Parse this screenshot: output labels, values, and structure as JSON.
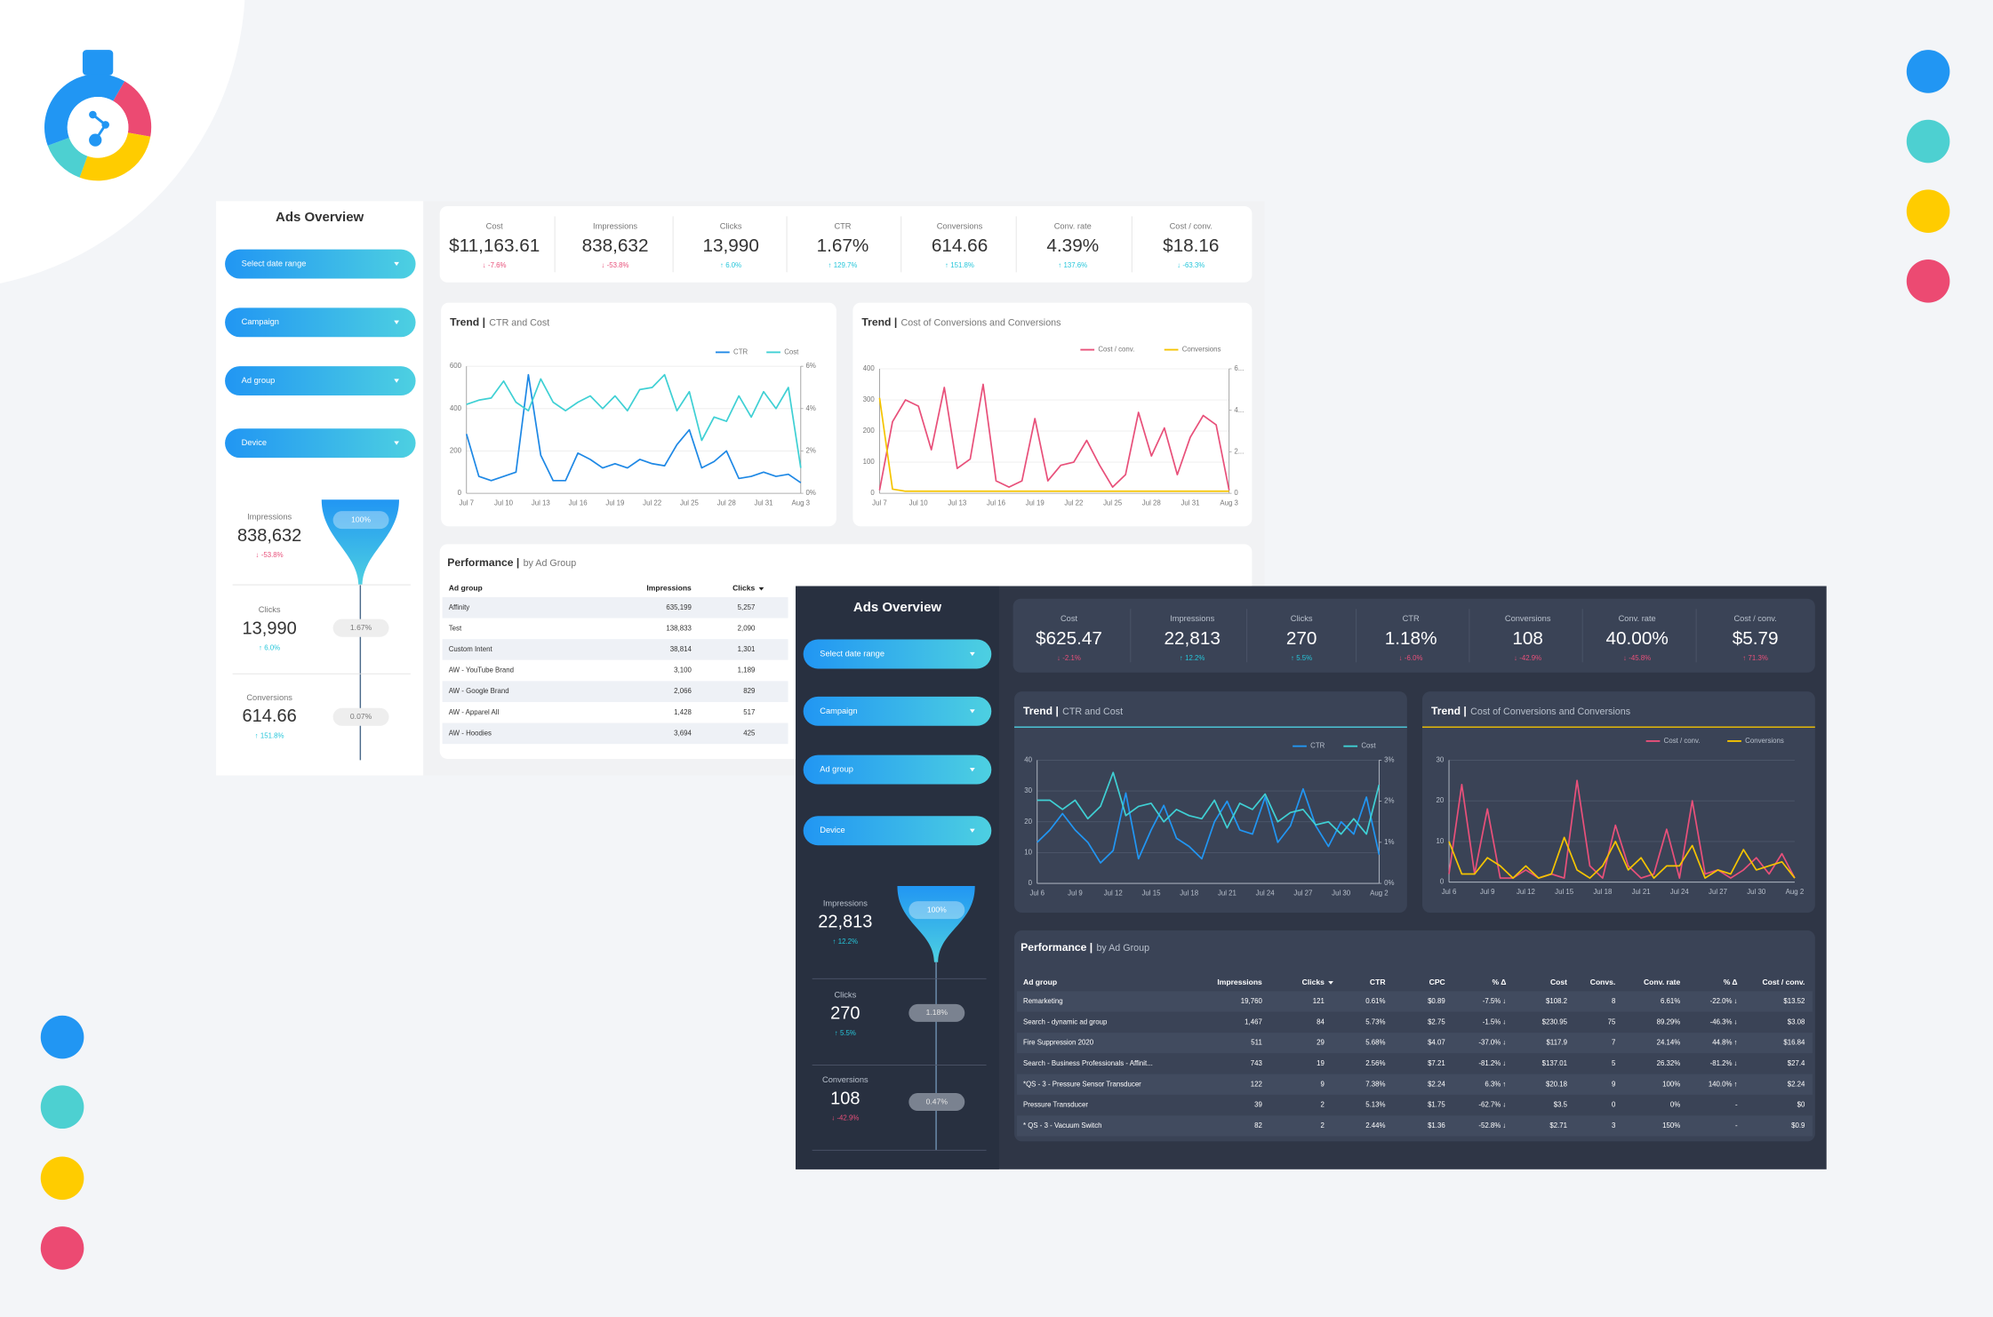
{
  "light": {
    "title": "Ads Overview",
    "filters": [
      "Select date range",
      "Campaign",
      "Ad group",
      "Device"
    ],
    "funnel": [
      {
        "label": "Impressions",
        "value": "838,632",
        "delta": "↓ -53.8%",
        "color": "#e8507a",
        "rate": "100%"
      },
      {
        "label": "Clicks",
        "value": "13,990",
        "delta": "↑ 6.0%",
        "color": "#26c6da",
        "rate": "1.67%"
      },
      {
        "label": "Conversions",
        "value": "614.66",
        "delta": "↑ 151.8%",
        "color": "#26c6da",
        "rate": "0.07%"
      }
    ],
    "kpis": [
      {
        "label": "Cost",
        "value": "$11,163.61",
        "delta": "↓ -7.6%",
        "color": "#e8507a"
      },
      {
        "label": "Impressions",
        "value": "838,632",
        "delta": "↓ -53.8%",
        "color": "#e8507a"
      },
      {
        "label": "Clicks",
        "value": "13,990",
        "delta": "↑ 6.0%",
        "color": "#26c6da"
      },
      {
        "label": "CTR",
        "value": "1.67%",
        "delta": "↑ 129.7%",
        "color": "#26c6da"
      },
      {
        "label": "Conversions",
        "value": "614.66",
        "delta": "↑ 151.8%",
        "color": "#26c6da"
      },
      {
        "label": "Conv. rate",
        "value": "4.39%",
        "delta": "↑ 137.6%",
        "color": "#26c6da"
      },
      {
        "label": "Cost / conv.",
        "value": "$18.16",
        "delta": "↓ -63.3%",
        "color": "#26c6da"
      }
    ],
    "charts": [
      {
        "type": "line",
        "title": "Trend |",
        "subtitle": "CTR and Cost",
        "grid": true,
        "x": [
          "Jul 7",
          null,
          null,
          "Jul 10",
          null,
          null,
          "Jul 13",
          null,
          null,
          "Jul 16",
          null,
          null,
          "Jul 19",
          null,
          null,
          "Jul 22",
          null,
          null,
          "Jul 25",
          null,
          null,
          "Jul 28",
          null,
          null,
          "Jul 31",
          null,
          null,
          "Aug 3"
        ],
        "ylim": [
          0,
          600
        ],
        "yticks": [
          0,
          200,
          400,
          600
        ],
        "y2lim": [
          0,
          6
        ],
        "y2ticks": [
          {
            "value": 0,
            "label": "0%"
          },
          {
            "value": 2,
            "label": "2%"
          },
          {
            "value": 4,
            "label": "4%"
          },
          {
            "value": 6,
            "label": "6%"
          }
        ],
        "series": [
          {
            "name": "CTR",
            "color": "#1e88e5",
            "axis": "y2",
            "values": [
              2.8,
              0.8,
              0.6,
              0.8,
              1.0,
              5.6,
              1.8,
              0.6,
              0.6,
              1.9,
              1.6,
              1.2,
              1.4,
              1.2,
              1.6,
              1.4,
              1.3,
              2.3,
              3.0,
              1.2,
              1.5,
              2.0,
              0.7,
              0.8,
              1.0,
              0.8,
              0.9,
              0.5
            ]
          },
          {
            "name": "Cost",
            "color": "#3fd0d4",
            "values": [
              420,
              440,
              450,
              530,
              430,
              390,
              540,
              430,
              390,
              430,
              460,
              400,
              460,
              390,
              490,
              500,
              560,
              390,
              480,
              250,
              360,
              340,
              460,
              360,
              480,
              400,
              500,
              120
            ]
          }
        ]
      },
      {
        "type": "line",
        "title": "Trend |",
        "subtitle": "Cost of Conversions and Conversions",
        "grid": true,
        "x": [
          "Jul 7",
          null,
          null,
          "Jul 10",
          null,
          null,
          "Jul 13",
          null,
          null,
          "Jul 16",
          null,
          null,
          "Jul 19",
          null,
          null,
          "Jul 22",
          null,
          null,
          "Jul 25",
          null,
          null,
          "Jul 28",
          null,
          null,
          "Jul 31",
          null,
          null,
          "Aug 3"
        ],
        "ylim": [
          0,
          400
        ],
        "yticks": [
          0,
          100,
          200,
          300,
          400
        ],
        "y2lim": [
          0,
          60
        ],
        "y2ticks": [
          0,
          {
            "value": 20,
            "label": "2..."
          },
          {
            "value": 40,
            "label": "4..."
          },
          {
            "value": 60,
            "label": "6..."
          }
        ],
        "series": [
          {
            "name": "Cost / conv.",
            "color": "#e8507a",
            "values": [
              10,
              230,
              300,
              280,
              140,
              340,
              80,
              110,
              350,
              40,
              20,
              40,
              240,
              40,
              90,
              100,
              170,
              90,
              20,
              60,
              260,
              120,
              210,
              60,
              180,
              250,
              220,
              10
            ]
          },
          {
            "name": "Conversions",
            "color": "#f5c400",
            "axis": "y2",
            "values": [
              46,
              2,
              1,
              1,
              1,
              1,
              1,
              1,
              1,
              1,
              1,
              1,
              1,
              1,
              1,
              1,
              1,
              1,
              1,
              1,
              1,
              1,
              1,
              1,
              1,
              1,
              1,
              1
            ]
          }
        ]
      }
    ],
    "performance": {
      "title": "Performance |",
      "subtitle": "by Ad Group",
      "columns": [
        "Ad group",
        "Impressions",
        "Clicks"
      ],
      "rows": [
        [
          "Affinity",
          "635,199",
          "5,257"
        ],
        [
          "Test",
          "138,833",
          "2,090"
        ],
        [
          "Custom Intent",
          "38,814",
          "1,301"
        ],
        [
          "AW - YouTube Brand",
          "3,100",
          "1,189"
        ],
        [
          "AW - Google Brand",
          "2,066",
          "829"
        ],
        [
          "AW - Apparel All",
          "1,428",
          "517"
        ],
        [
          "AW - Hoodies",
          "3,694",
          "425"
        ]
      ]
    }
  },
  "dark": {
    "title": "Ads Overview",
    "filters": [
      "Select date range",
      "Campaign",
      "Ad group",
      "Device"
    ],
    "funnel": [
      {
        "label": "Impressions",
        "value": "22,813",
        "delta": "↑ 12.2%",
        "color": "#26c6da",
        "rate": "100%"
      },
      {
        "label": "Clicks",
        "value": "270",
        "delta": "↑ 5.5%",
        "color": "#26c6da",
        "rate": "1.18%"
      },
      {
        "label": "Conversions",
        "value": "108",
        "delta": "↓ -42.9%",
        "color": "#e8507a",
        "rate": "0.47%"
      }
    ],
    "kpis": [
      {
        "label": "Cost",
        "value": "$625.47",
        "delta": "↓ -2.1%",
        "color": "#e8507a"
      },
      {
        "label": "Impressions",
        "value": "22,813",
        "delta": "↑ 12.2%",
        "color": "#26c6da"
      },
      {
        "label": "Clicks",
        "value": "270",
        "delta": "↑ 5.5%",
        "color": "#26c6da"
      },
      {
        "label": "CTR",
        "value": "1.18%",
        "delta": "↓ -6.0%",
        "color": "#e8507a"
      },
      {
        "label": "Conversions",
        "value": "108",
        "delta": "↓ -42.9%",
        "color": "#e8507a"
      },
      {
        "label": "Conv. rate",
        "value": "40.00%",
        "delta": "↓ -45.8%",
        "color": "#e8507a"
      },
      {
        "label": "Cost / conv.",
        "value": "$5.79",
        "delta": "↑ 71.3%",
        "color": "#e8507a"
      }
    ],
    "charts": [
      {
        "type": "line",
        "title": "Trend |",
        "subtitle": "CTR and Cost",
        "grid": true,
        "x": [
          "Jul 6",
          null,
          null,
          "Jul 9",
          null,
          null,
          "Jul 12",
          null,
          null,
          "Jul 15",
          null,
          null,
          "Jul 18",
          null,
          null,
          "Jul 21",
          null,
          null,
          "Jul 24",
          null,
          null,
          "Jul 27",
          null,
          null,
          "Jul 30",
          null,
          null,
          "Aug 2"
        ],
        "ylim": [
          0,
          40
        ],
        "yticks": [
          0,
          10,
          20,
          30,
          40
        ],
        "y2lim": [
          0,
          3
        ],
        "y2ticks": [
          {
            "value": 0,
            "label": "0%"
          },
          {
            "value": 1,
            "label": "1%"
          },
          {
            "value": 2,
            "label": "2%"
          },
          {
            "value": 3,
            "label": "3%"
          }
        ],
        "series": [
          {
            "name": "CTR",
            "color": "#2196f3",
            "axis": "y2",
            "values": [
              1.0,
              1.3,
              1.7,
              1.3,
              1.0,
              0.5,
              0.8,
              2.2,
              0.6,
              1.3,
              1.9,
              1.1,
              0.9,
              0.6,
              1.5,
              2.0,
              1.3,
              1.2,
              2.1,
              1.0,
              1.4,
              2.3,
              1.4,
              0.9,
              1.5,
              1.2,
              2.1,
              0.7
            ]
          },
          {
            "name": "Cost",
            "color": "#3fd0d4",
            "values": [
              27,
              27,
              24,
              27,
              21,
              25,
              36,
              22,
              25,
              26,
              20,
              24,
              22,
              21,
              27,
              18,
              26,
              24,
              29,
              20,
              23,
              24,
              19,
              20,
              16,
              21,
              16,
              32
            ]
          }
        ]
      },
      {
        "type": "line",
        "title": "Trend |",
        "subtitle": "Cost of Conversions and Conversions",
        "grid": true,
        "x": [
          "Jul 6",
          null,
          null,
          "Jul 9",
          null,
          null,
          "Jul 12",
          null,
          null,
          "Jul 15",
          null,
          null,
          "Jul 18",
          null,
          null,
          "Jul 21",
          null,
          null,
          "Jul 24",
          null,
          null,
          "Jul 27",
          null,
          null,
          "Jul 30",
          null,
          null,
          "Aug 2"
        ],
        "ylim": [
          0,
          30
        ],
        "yticks": [
          0,
          10,
          20,
          30
        ],
        "series": [
          {
            "name": "Cost / conv.",
            "color": "#e8507a",
            "values": [
              2,
              24,
              2,
              18,
              1,
              1,
              3,
              1,
              2,
              1,
              25,
              4,
              1,
              14,
              4,
              1,
              2,
              13,
              1,
              20,
              2,
              3,
              1,
              3,
              6,
              2,
              7,
              1
            ]
          },
          {
            "name": "Conversions",
            "color": "#f5c400",
            "values": [
              10,
              2,
              2,
              6,
              4,
              1,
              4,
              1,
              2,
              11,
              3,
              1,
              4,
              10,
              3,
              6,
              1,
              4,
              4,
              9,
              1,
              3,
              2,
              8,
              3,
              4,
              5,
              1
            ]
          }
        ]
      }
    ],
    "performance": {
      "title": "Performance |",
      "subtitle": "by Ad Group",
      "columns": [
        "Ad group",
        "Impressions",
        "Clicks",
        "CTR",
        "CPC",
        "% Δ",
        "Cost",
        "Convs.",
        "Conv. rate",
        "% Δ",
        "Cost / conv."
      ],
      "rows": [
        [
          "Remarketing",
          "19,760",
          "121",
          "0.61%",
          "$0.89",
          "-7.5% ↓",
          "$108.2",
          "8",
          "6.61%",
          "-22.0% ↓",
          "$13.52"
        ],
        [
          "Search - dynamic ad group",
          "1,467",
          "84",
          "5.73%",
          "$2.75",
          "-1.5% ↓",
          "$230.95",
          "75",
          "89.29%",
          "-46.3% ↓",
          "$3.08"
        ],
        [
          "Fire Suppression 2020",
          "511",
          "29",
          "5.68%",
          "$4.07",
          "-37.0% ↓",
          "$117.9",
          "7",
          "24.14%",
          "44.8% ↑",
          "$16.84"
        ],
        [
          "Search - Business Professionals - Affinit...",
          "743",
          "19",
          "2.56%",
          "$7.21",
          "-81.2% ↓",
          "$137.01",
          "5",
          "26.32%",
          "-81.2% ↓",
          "$27.4"
        ],
        [
          "*QS - 3 - Pressure Sensor Transducer",
          "122",
          "9",
          "7.38%",
          "$2.24",
          "6.3% ↑",
          "$20.18",
          "9",
          "100%",
          "140.0% ↑",
          "$2.24"
        ],
        [
          "Pressure Transducer",
          "39",
          "2",
          "5.13%",
          "$1.75",
          "-62.7% ↓",
          "$3.5",
          "0",
          "0%",
          "-",
          "$0"
        ],
        [
          "* QS - 3 - Vacuum Switch",
          "82",
          "2",
          "2.44%",
          "$1.36",
          "-52.8% ↓",
          "$2.71",
          "3",
          "150%",
          "-",
          "$0.9"
        ]
      ]
    }
  }
}
